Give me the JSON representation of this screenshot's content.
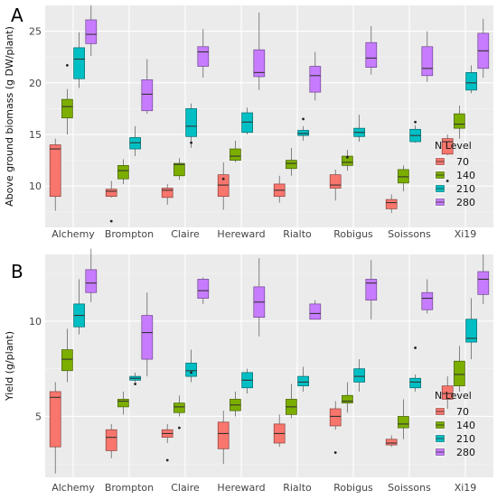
{
  "chart_data": [
    {
      "type": "box",
      "panel_label": "A",
      "xlabel": "",
      "ylabel": "Above ground biomass (g DW/plant)",
      "ylim": [
        6,
        27.5
      ],
      "yticks": [
        10,
        15,
        20,
        25
      ],
      "grid": true,
      "legend": {
        "title": "N Level",
        "position": "right",
        "entries": [
          "70",
          "140",
          "210",
          "280"
        ]
      },
      "categories": [
        "Alchemy",
        "Brompton",
        "Claire",
        "Hereward",
        "Rialto",
        "Robigus",
        "Soissons",
        "Xi19"
      ],
      "series": [
        {
          "name": "70",
          "color": "#f8766d",
          "boxes": [
            {
              "min": 7.6,
              "q1": 9.0,
              "median": 13.6,
              "q3": 14.0,
              "max": 14.6,
              "outliers": []
            },
            {
              "min": 8.9,
              "q1": 9.0,
              "median": 9.5,
              "q3": 9.7,
              "max": 10.5,
              "outliers": [
                6.6
              ]
            },
            {
              "min": 8.2,
              "q1": 8.9,
              "median": 9.6,
              "q3": 9.8,
              "max": 10.2,
              "outliers": []
            },
            {
              "min": 7.7,
              "q1": 9.0,
              "median": 10.1,
              "q3": 11.1,
              "max": 12.3,
              "outliers": [
                10.7
              ]
            },
            {
              "min": 8.4,
              "q1": 9.0,
              "median": 9.6,
              "q3": 10.2,
              "max": 11.0,
              "outliers": []
            },
            {
              "min": 8.6,
              "q1": 9.8,
              "median": 10.1,
              "q3": 11.1,
              "max": 11.6,
              "outliers": []
            },
            {
              "min": 7.4,
              "q1": 7.8,
              "median": 8.4,
              "q3": 8.7,
              "max": 9.2,
              "outliers": []
            },
            {
              "min": 13.0,
              "q1": 13.1,
              "median": 14.3,
              "q3": 14.6,
              "max": 15.0,
              "outliers": [
                10.5
              ]
            }
          ]
        },
        {
          "name": "140",
          "color": "#7cae00",
          "boxes": [
            {
              "min": 15.0,
              "q1": 16.6,
              "median": 17.7,
              "q3": 18.4,
              "max": 19.4,
              "outliers": [
                21.7
              ]
            },
            {
              "min": 10.2,
              "q1": 10.7,
              "median": 11.5,
              "q3": 12.0,
              "max": 12.6,
              "outliers": []
            },
            {
              "min": 10.6,
              "q1": 11.0,
              "median": 12.1,
              "q3": 12.2,
              "max": 12.7,
              "outliers": []
            },
            {
              "min": 12.3,
              "q1": 12.5,
              "median": 12.9,
              "q3": 13.6,
              "max": 14.4,
              "outliers": []
            },
            {
              "min": 11.0,
              "q1": 11.7,
              "median": 12.2,
              "q3": 12.5,
              "max": 13.7,
              "outliers": []
            },
            {
              "min": 11.5,
              "q1": 12.0,
              "median": 12.3,
              "q3": 12.9,
              "max": 13.5,
              "outliers": [
                12.8
              ]
            },
            {
              "min": 9.5,
              "q1": 10.3,
              "median": 10.9,
              "q3": 11.6,
              "max": 12.0,
              "outliers": []
            },
            {
              "min": 14.6,
              "q1": 15.6,
              "median": 16.0,
              "q3": 17.0,
              "max": 17.8,
              "outliers": []
            }
          ]
        },
        {
          "name": "210",
          "color": "#00bfc4",
          "boxes": [
            {
              "min": 19.5,
              "q1": 20.4,
              "median": 22.3,
              "q3": 23.4,
              "max": 24.9,
              "outliers": []
            },
            {
              "min": 12.9,
              "q1": 13.6,
              "median": 14.2,
              "q3": 14.7,
              "max": 15.8,
              "outliers": []
            },
            {
              "min": 13.7,
              "q1": 14.8,
              "median": 15.8,
              "q3": 17.5,
              "max": 18.0,
              "outliers": [
                14.2
              ]
            },
            {
              "min": 15.0,
              "q1": 15.2,
              "median": 16.2,
              "q3": 17.1,
              "max": 17.6,
              "outliers": []
            },
            {
              "min": 14.4,
              "q1": 14.9,
              "median": 15.1,
              "q3": 15.4,
              "max": 15.8,
              "outliers": [
                16.5
              ]
            },
            {
              "min": 14.3,
              "q1": 14.8,
              "median": 15.2,
              "q3": 15.6,
              "max": 16.9,
              "outliers": []
            },
            {
              "min": 14.2,
              "q1": 14.3,
              "median": 14.9,
              "q3": 15.5,
              "max": 15.9,
              "outliers": [
                16.2
              ]
            },
            {
              "min": 19.0,
              "q1": 19.3,
              "median": 20.0,
              "q3": 21.0,
              "max": 21.7,
              "outliers": []
            }
          ]
        },
        {
          "name": "280",
          "color": "#c77cff",
          "boxes": [
            {
              "min": 22.6,
              "q1": 23.8,
              "median": 24.7,
              "q3": 26.1,
              "max": 27.5,
              "outliers": []
            },
            {
              "min": 17.0,
              "q1": 17.3,
              "median": 18.9,
              "q3": 20.3,
              "max": 22.3,
              "outliers": []
            },
            {
              "min": 20.5,
              "q1": 21.6,
              "median": 23.0,
              "q3": 23.5,
              "max": 25.2,
              "outliers": []
            },
            {
              "min": 19.3,
              "q1": 20.6,
              "median": 21.0,
              "q3": 23.2,
              "max": 26.8,
              "outliers": []
            },
            {
              "min": 18.3,
              "q1": 19.1,
              "median": 20.7,
              "q3": 21.6,
              "max": 23.0,
              "outliers": []
            },
            {
              "min": 20.8,
              "q1": 21.5,
              "median": 22.4,
              "q3": 23.9,
              "max": 25.5,
              "outliers": []
            },
            {
              "min": 20.1,
              "q1": 20.7,
              "median": 21.4,
              "q3": 23.5,
              "max": 25.0,
              "outliers": []
            },
            {
              "min": 20.5,
              "q1": 21.4,
              "median": 23.1,
              "q3": 24.8,
              "max": 26.2,
              "outliers": []
            }
          ]
        }
      ]
    },
    {
      "type": "box",
      "panel_label": "B",
      "xlabel": "",
      "ylabel": "Yield (g/plant)",
      "ylim": [
        1.8,
        13.5
      ],
      "yticks": [
        5,
        10
      ],
      "grid": true,
      "legend": {
        "title": "N Level",
        "position": "right",
        "entries": [
          "70",
          "140",
          "210",
          "280"
        ]
      },
      "categories": [
        "Alchemy",
        "Brompton",
        "Claire",
        "Hereward",
        "Rialto",
        "Robigus",
        "Soissons",
        "Xi19"
      ],
      "series": [
        {
          "name": "70",
          "color": "#f8766d",
          "boxes": [
            {
              "min": 2.0,
              "q1": 3.4,
              "median": 6.0,
              "q3": 6.3,
              "max": 6.8,
              "outliers": []
            },
            {
              "min": 2.8,
              "q1": 3.2,
              "median": 3.9,
              "q3": 4.3,
              "max": 4.6,
              "outliers": []
            },
            {
              "min": 3.6,
              "q1": 3.9,
              "median": 4.1,
              "q3": 4.3,
              "max": 4.6,
              "outliers": [
                2.7
              ]
            },
            {
              "min": 2.5,
              "q1": 3.3,
              "median": 4.1,
              "q3": 4.7,
              "max": 5.3,
              "outliers": []
            },
            {
              "min": 3.4,
              "q1": 3.6,
              "median": 4.1,
              "q3": 4.6,
              "max": 5.1,
              "outliers": []
            },
            {
              "min": 4.3,
              "q1": 4.5,
              "median": 5.0,
              "q3": 5.4,
              "max": 5.8,
              "outliers": [
                3.1
              ]
            },
            {
              "min": 3.4,
              "q1": 3.5,
              "median": 3.6,
              "q3": 3.8,
              "max": 4.0,
              "outliers": []
            },
            {
              "min": 5.4,
              "q1": 5.9,
              "median": 6.2,
              "q3": 6.6,
              "max": 7.1,
              "outliers": []
            }
          ]
        },
        {
          "name": "140",
          "color": "#7cae00",
          "boxes": [
            {
              "min": 6.8,
              "q1": 7.4,
              "median": 8.0,
              "q3": 8.5,
              "max": 9.6,
              "outliers": []
            },
            {
              "min": 5.1,
              "q1": 5.5,
              "median": 5.8,
              "q3": 5.9,
              "max": 6.3,
              "outliers": []
            },
            {
              "min": 5.0,
              "q1": 5.2,
              "median": 5.5,
              "q3": 5.7,
              "max": 6.1,
              "outliers": [
                4.4
              ]
            },
            {
              "min": 5.0,
              "q1": 5.3,
              "median": 5.6,
              "q3": 5.9,
              "max": 6.3,
              "outliers": []
            },
            {
              "min": 4.9,
              "q1": 5.1,
              "median": 5.5,
              "q3": 5.9,
              "max": 6.7,
              "outliers": []
            },
            {
              "min": 5.2,
              "q1": 5.7,
              "median": 5.8,
              "q3": 6.1,
              "max": 6.8,
              "outliers": []
            },
            {
              "min": 3.8,
              "q1": 4.4,
              "median": 4.6,
              "q3": 5.0,
              "max": 5.9,
              "outliers": []
            },
            {
              "min": 6.3,
              "q1": 6.6,
              "median": 7.2,
              "q3": 7.9,
              "max": 8.7,
              "outliers": []
            }
          ]
        },
        {
          "name": "210",
          "color": "#00bfc4",
          "boxes": [
            {
              "min": 9.3,
              "q1": 9.7,
              "median": 10.3,
              "q3": 10.9,
              "max": 12.2,
              "outliers": []
            },
            {
              "min": 6.8,
              "q1": 6.9,
              "median": 7.0,
              "q3": 7.1,
              "max": 7.3,
              "outliers": [
                6.7
              ]
            },
            {
              "min": 6.8,
              "q1": 7.1,
              "median": 7.4,
              "q3": 7.8,
              "max": 8.5,
              "outliers": [
                7.3
              ]
            },
            {
              "min": 6.2,
              "q1": 6.5,
              "median": 6.9,
              "q3": 7.3,
              "max": 7.5,
              "outliers": []
            },
            {
              "min": 6.3,
              "q1": 6.6,
              "median": 6.8,
              "q3": 7.1,
              "max": 7.6,
              "outliers": []
            },
            {
              "min": 6.3,
              "q1": 6.8,
              "median": 7.1,
              "q3": 7.5,
              "max": 8.0,
              "outliers": []
            },
            {
              "min": 6.3,
              "q1": 6.5,
              "median": 6.8,
              "q3": 7.0,
              "max": 7.2,
              "outliers": [
                8.6
              ]
            },
            {
              "min": 8.0,
              "q1": 8.9,
              "median": 9.1,
              "q3": 10.1,
              "max": 11.2,
              "outliers": []
            }
          ]
        },
        {
          "name": "280",
          "color": "#c77cff",
          "boxes": [
            {
              "min": 11.0,
              "q1": 11.5,
              "median": 12.0,
              "q3": 12.7,
              "max": 13.8,
              "outliers": []
            },
            {
              "min": 7.1,
              "q1": 8.0,
              "median": 9.4,
              "q3": 10.3,
              "max": 11.5,
              "outliers": []
            },
            {
              "min": 10.9,
              "q1": 11.2,
              "median": 11.6,
              "q3": 12.2,
              "max": 12.3,
              "outliers": []
            },
            {
              "min": 9.2,
              "q1": 10.2,
              "median": 11.0,
              "q3": 11.8,
              "max": 13.3,
              "outliers": []
            },
            {
              "min": 10.1,
              "q1": 10.1,
              "median": 10.4,
              "q3": 10.9,
              "max": 11.1,
              "outliers": []
            },
            {
              "min": 10.1,
              "q1": 11.1,
              "median": 12.0,
              "q3": 12.2,
              "max": 13.2,
              "outliers": []
            },
            {
              "min": 10.4,
              "q1": 10.6,
              "median": 11.2,
              "q3": 11.5,
              "max": 12.2,
              "outliers": []
            },
            {
              "min": 10.9,
              "q1": 11.4,
              "median": 12.2,
              "q3": 12.6,
              "max": 13.5,
              "outliers": []
            }
          ]
        }
      ]
    }
  ]
}
